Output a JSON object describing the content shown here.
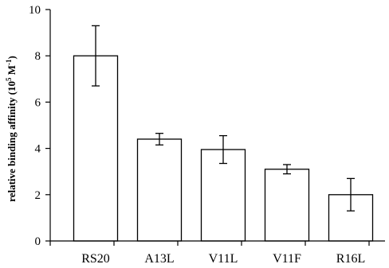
{
  "chart_data": {
    "type": "bar",
    "title": "",
    "xlabel": "",
    "ylabel": {
      "main": "relative binding affinity (10",
      "sup1": "5",
      "mid": " M",
      "sup2": "-1",
      "end": ")"
    },
    "categories": [
      "RS20",
      "A13L",
      "V11L",
      "V11F",
      "R16L"
    ],
    "values": [
      8.0,
      4.4,
      3.95,
      3.1,
      2.0
    ],
    "errors": [
      1.3,
      0.25,
      0.6,
      0.2,
      0.7
    ],
    "ylim": [
      0,
      10
    ],
    "yticks": [
      "0",
      "2",
      "4",
      "6",
      "8",
      "10"
    ],
    "ytick_values": [
      0,
      2,
      4,
      6,
      8,
      10
    ],
    "grid": false,
    "legend": false,
    "bar_fill": "#ffffff",
    "bar_stroke": "#000000"
  }
}
